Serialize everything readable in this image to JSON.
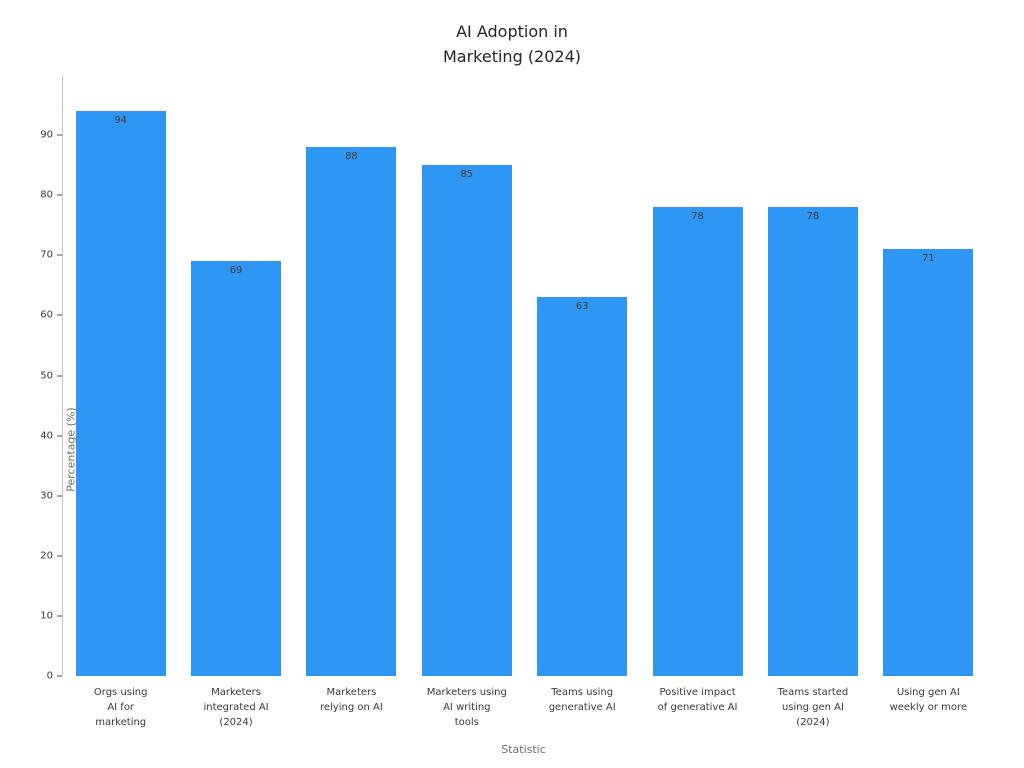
{
  "chart_data": {
    "type": "bar",
    "title": "AI Adoption in\nMarketing (2024)",
    "xlabel": "Statistic",
    "ylabel": "Percentage (%)",
    "categories": [
      "Orgs using\nAI for\nmarketing",
      "Marketers\nintegrated AI\n(2024)",
      "Marketers\nrelying on AI",
      "Marketers using\nAI writing\ntools",
      "Teams using\ngenerative AI",
      "Positive impact\nof generative AI",
      "Teams started\nusing gen AI\n(2024)",
      "Using gen AI\nweekly or more"
    ],
    "values": [
      94,
      69,
      88,
      85,
      63,
      78,
      78,
      71
    ],
    "ylim": [
      0,
      100
    ],
    "yticks": [
      0,
      10,
      20,
      30,
      40,
      50,
      60,
      70,
      80,
      90
    ],
    "grid": false,
    "legend_position": "none",
    "bar_color": "#2E96F5",
    "value_label_color": "#3d3d3d",
    "axis_color": "#c6c6c6"
  }
}
